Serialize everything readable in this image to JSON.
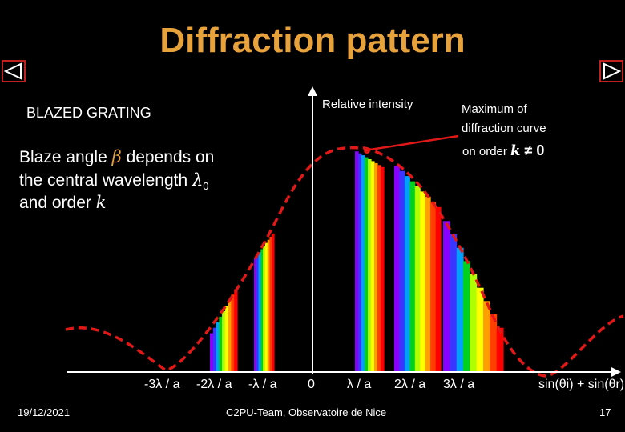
{
  "title": "Diffraction pattern",
  "subtitle": "BLAZED GRATING",
  "description": {
    "line1_pre": "Blaze angle ",
    "beta": "β",
    "line1_post": " depends on",
    "line2_pre": "the central wavelength ",
    "lambda0": "λ",
    "lambda0_sub": "0",
    "line3_pre": "and order ",
    "k": "k"
  },
  "yaxis_label": "Relative intensity",
  "note": {
    "line1": "Maximum of",
    "line2": "diffraction curve",
    "line3_pre": "on order ",
    "k": "k",
    "neq0": " ≠ 0"
  },
  "x_ticks": [
    "-3λ / a",
    "-2λ / a",
    "-λ / a",
    "0",
    "λ / a",
    "2λ / a",
    "3λ / a"
  ],
  "xaxis_label": "sin(θi) + sin(θr)",
  "footer": {
    "date": "19/12/2021",
    "center": "C2PU-Team, Observatoire de Nice",
    "page": "17"
  },
  "nav": {
    "prev": "previous-slide",
    "next": "next-slide"
  },
  "colors": {
    "title": "#e8a23c",
    "envelope": "#e01818",
    "spectrum": [
      "#8a00ff",
      "#3a35ff",
      "#00a0ff",
      "#00d020",
      "#b0ff00",
      "#ffff00",
      "#ffa000",
      "#ff4000",
      "#ff0000"
    ]
  }
}
